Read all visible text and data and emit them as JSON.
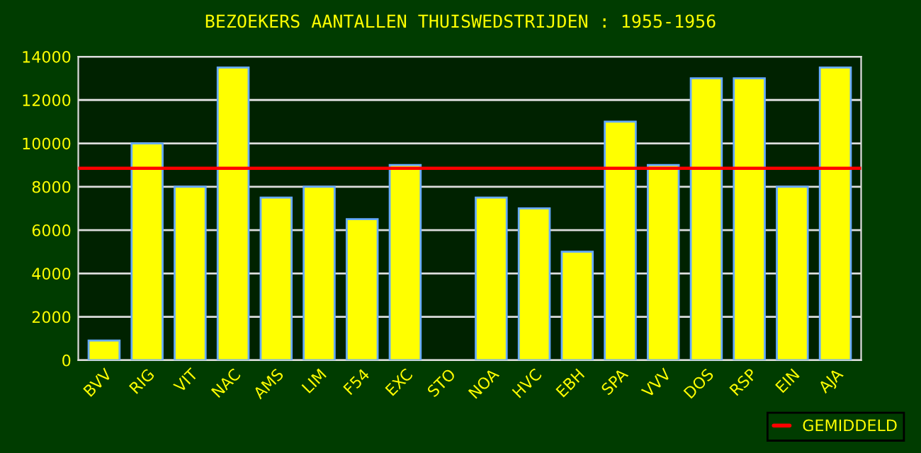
{
  "chart_data": {
    "type": "bar",
    "title": "BEZOEKERS AANTALLEN THUISWEDSTRIJDEN : 1955-1956",
    "categories": [
      "BVV",
      "RIG",
      "VIT",
      "NAC",
      "AMS",
      "LIM",
      "F54",
      "EXC",
      "STO",
      "NOA",
      "HVC",
      "EBH",
      "SPA",
      "VVV",
      "DOS",
      "RSP",
      "EIN",
      "AJA"
    ],
    "values": [
      900,
      10000,
      8000,
      13500,
      7500,
      8000,
      6500,
      9000,
      null,
      7500,
      7000,
      5000,
      11000,
      9000,
      13000,
      13000,
      8000,
      13500
    ],
    "color": "#ffff00",
    "ylim": [
      0,
      14000
    ],
    "yticks": [
      0,
      2000,
      4000,
      6000,
      8000,
      10000,
      12000,
      14000
    ],
    "grid": "y",
    "ref_lines": [
      {
        "axis": "y",
        "value": 8850,
        "label": "GEMIDDELD",
        "color": "#ff0000"
      }
    ],
    "legend": "bottom right"
  }
}
